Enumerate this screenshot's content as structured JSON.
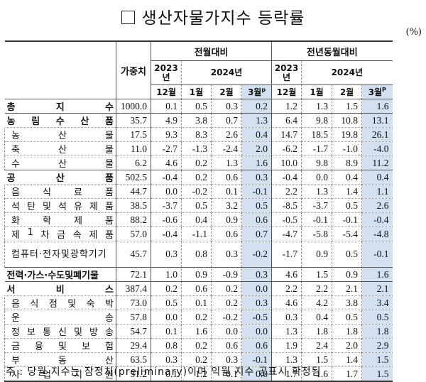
{
  "title": "생산자물가지수 등락률",
  "unit": "(%)",
  "header": {
    "weight": "가중치",
    "group_mom": "전월대비",
    "group_yoy": "전년동월대비",
    "year_2023": "2023년",
    "year_2024": "2024년",
    "months": [
      "12월",
      "1월",
      "2월",
      "3월"
    ],
    "preliminary_mark": "p",
    "preliminary_mark_yoy": "P"
  },
  "rows": [
    {
      "label": "총 지 수",
      "parts": [
        "총",
        "지",
        "수"
      ],
      "level": "top",
      "weight": "1000.0",
      "mom": [
        "0.1",
        "0.5",
        "0.3",
        "0.2"
      ],
      "yoy": [
        "1.2",
        "1.3",
        "1.5",
        "1.6"
      ]
    },
    {
      "label": "농림수산품",
      "parts": [
        "농",
        "림",
        "수",
        "산",
        "품"
      ],
      "level": "group",
      "weight": "35.7",
      "mom": [
        "4.9",
        "3.8",
        "0.7",
        "1.3"
      ],
      "yoy": [
        "6.4",
        "9.8",
        "10.8",
        "13.1"
      ]
    },
    {
      "label": "농산물",
      "parts": [
        "농",
        "산",
        "물"
      ],
      "level": "sub",
      "weight": "17.5",
      "mom": [
        "9.3",
        "8.3",
        "2.6",
        "0.4"
      ],
      "yoy": [
        "14.7",
        "18.5",
        "19.8",
        "26.1"
      ]
    },
    {
      "label": "축산물",
      "parts": [
        "축",
        "산",
        "물"
      ],
      "level": "sub",
      "weight": "11.0",
      "mom": [
        "-2.7",
        "-1.3",
        "-2.4",
        "2.0"
      ],
      "yoy": [
        "-6.2",
        "-1.7",
        "-1.0",
        "-4.0"
      ]
    },
    {
      "label": "수산물",
      "parts": [
        "수",
        "산",
        "물"
      ],
      "level": "sub",
      "weight": "6.2",
      "mom": [
        "4.6",
        "0.2",
        "1.3",
        "1.6"
      ],
      "yoy": [
        "10.0",
        "9.8",
        "8.9",
        "11.2"
      ]
    },
    {
      "label": "공산품",
      "parts": [
        "공",
        "산",
        "품"
      ],
      "level": "group",
      "weight": "502.5",
      "mom": [
        "-0.4",
        "0.2",
        "0.6",
        "0.3"
      ],
      "yoy": [
        "-0.4",
        "0.0",
        "0.4",
        "0.4"
      ]
    },
    {
      "label": "음식료품",
      "parts": [
        "음",
        "식",
        "료",
        "품"
      ],
      "level": "sub",
      "weight": "44.7",
      "mom": [
        "0.0",
        "-0.2",
        "0.1",
        "-0.1"
      ],
      "yoy": [
        "2.2",
        "1.3",
        "1.4",
        "1.1"
      ]
    },
    {
      "label": "석탄및석유제품",
      "parts": [
        "석",
        "탄",
        "및",
        "석",
        "유",
        "제",
        "품"
      ],
      "level": "sub",
      "weight": "38.5",
      "mom": [
        "-3.7",
        "0.5",
        "3.2",
        "0.5"
      ],
      "yoy": [
        "-8.5",
        "-3.7",
        "0.5",
        "2.6"
      ]
    },
    {
      "label": "화학제품",
      "parts": [
        "화",
        "학",
        "제",
        "품"
      ],
      "level": "sub",
      "weight": "88.2",
      "mom": [
        "-0.6",
        "0.4",
        "0.9",
        "0.6"
      ],
      "yoy": [
        "-0.5",
        "-0.1",
        "-0.1",
        "-0.4"
      ]
    },
    {
      "label": "제1차금속제품",
      "parts": [
        "제",
        "1",
        "차",
        "금",
        "속",
        "제",
        "품"
      ],
      "level": "sub",
      "weight": "57.0",
      "mom": [
        "-0.4",
        "-1.1",
        "0.6",
        "0.7"
      ],
      "yoy": [
        "-4.7",
        "-5.8",
        "-5.4",
        "-4.8"
      ]
    },
    {
      "label": "컴퓨터·전자및광학기기",
      "parts": [
        "컴퓨터·전자및광학기기"
      ],
      "level": "sub-tall",
      "weight": "45.7",
      "mom": [
        "0.3",
        "0.8",
        "0.3",
        "-0.2"
      ],
      "yoy": [
        "-1.7",
        "0.9",
        "0.5",
        "-0.1"
      ]
    },
    {
      "label": "전력·가스·수도및폐기물",
      "parts": [
        "전력·가스·수도및폐기물"
      ],
      "level": "group",
      "weight": "72.1",
      "mom": [
        "1.0",
        "0.9",
        "-0.9",
        "0.3"
      ],
      "yoy": [
        "4.6",
        "1.5",
        "0.9",
        "1.6"
      ]
    },
    {
      "label": "서비스",
      "parts": [
        "서",
        "비",
        "스"
      ],
      "level": "group",
      "weight": "387.4",
      "mom": [
        "0.2",
        "0.6",
        "0.2",
        "0.0"
      ],
      "yoy": [
        "2.2",
        "2.2",
        "2.1",
        "2.1"
      ]
    },
    {
      "label": "음식점및숙박",
      "parts": [
        "음",
        "식",
        "점",
        "및",
        "숙",
        "박"
      ],
      "level": "sub",
      "weight": "73.0",
      "mom": [
        "0.5",
        "0.1",
        "0.2",
        "0.3"
      ],
      "yoy": [
        "4.6",
        "4.2",
        "3.8",
        "3.4"
      ]
    },
    {
      "label": "운송",
      "parts": [
        "운",
        "송"
      ],
      "level": "sub",
      "weight": "57.8",
      "mom": [
        "0.0",
        "0.2",
        "-0.2",
        "-0.5"
      ],
      "yoy": [
        "0.3",
        "0.4",
        "0.5",
        "0.5"
      ]
    },
    {
      "label": "정보통신및방송",
      "parts": [
        "정",
        "보",
        "통",
        "신",
        "및",
        "방",
        "송"
      ],
      "level": "sub",
      "weight": "54.7",
      "mom": [
        "0.1",
        "1.6",
        "0.0",
        "0.0"
      ],
      "yoy": [
        "1.3",
        "1.8",
        "1.8",
        "1.8"
      ]
    },
    {
      "label": "금융및보험",
      "parts": [
        "금",
        "융",
        "및",
        "보",
        "험"
      ],
      "level": "sub",
      "weight": "29.4",
      "mom": [
        "0.8",
        "0.2",
        "0.6",
        "0.6"
      ],
      "yoy": [
        "1.9",
        "2.4",
        "2.0",
        "2.9"
      ]
    },
    {
      "label": "부동산",
      "parts": [
        "부",
        "동",
        "산"
      ],
      "level": "sub",
      "weight": "63.5",
      "mom": [
        "0.3",
        "0.2",
        "0.3",
        "-0.1"
      ],
      "yoy": [
        "1.3",
        "1.5",
        "1.4",
        "1.5"
      ]
    },
    {
      "label": "사업지원",
      "parts": [
        "사",
        "업",
        "지",
        "원"
      ],
      "level": "sub",
      "weight": "31.2",
      "mom": [
        "0.1",
        "1.2",
        "0.1",
        "0.0"
      ],
      "yoy": [
        "1.7",
        "1.6",
        "1.7",
        "1.5"
      ]
    }
  ],
  "note": "주 : 당월 지수는 잠정치(preliminary)이며 익월 지수 공표시 확정됨",
  "colors": {
    "highlight": "#d3e0f0"
  }
}
